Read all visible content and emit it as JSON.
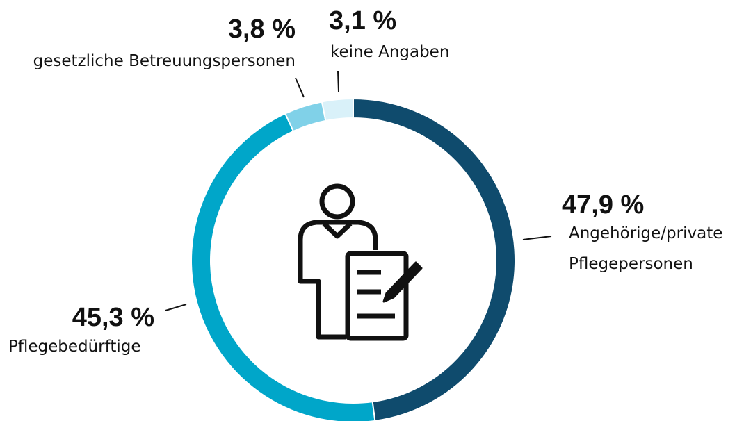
{
  "chart_data": {
    "type": "donut",
    "categories": [
      "Angehörige/private Pflegepersonen",
      "Pflegebedürftige",
      "gesetzliche Betreuungspersonen",
      "keine Angaben"
    ],
    "values": [
      47.9,
      45.3,
      3.8,
      3.1
    ],
    "value_labels": [
      "47,9 %",
      "45,3 %",
      "3,8 %",
      "3,1 %"
    ],
    "colors": [
      "#0f4b6d",
      "#00a6c9",
      "#80d1e8",
      "#d9f1f9"
    ]
  }
}
